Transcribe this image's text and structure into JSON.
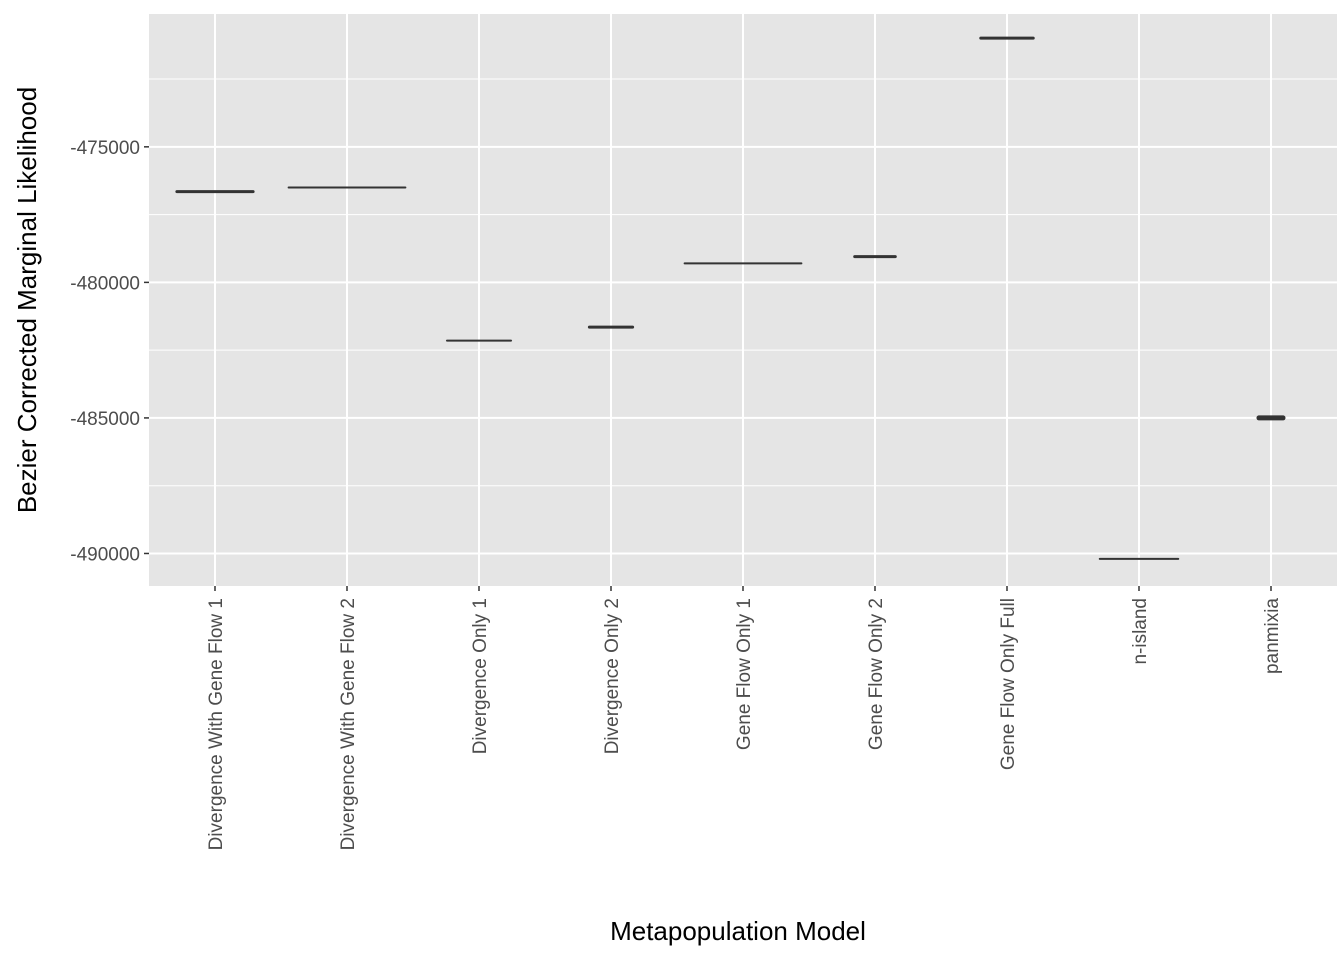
{
  "chart_data": {
    "type": "violin",
    "title": "",
    "xlabel": "Metapopulation Model",
    "ylabel": "Bezier Corrected Marginal Likelihood",
    "ylim": [
      -491200,
      -470100
    ],
    "yticks": [
      -475000,
      -480000,
      -485000,
      -490000
    ],
    "ytick_labels": [
      "-475000",
      "-480000",
      "-485000",
      "-490000"
    ],
    "grid": true,
    "background": "#e5e5e5",
    "grid_color": "#ffffff",
    "mark_color": "#333333",
    "categories": [
      "Divergence With Gene Flow 1",
      "Divergence With Gene Flow 2",
      "Divergence Only 1",
      "Divergence Only 2",
      "Gene Flow Only 1",
      "Gene Flow Only 2",
      "Gene Flow Only Full",
      "n-island",
      "panmixia"
    ],
    "values": [
      -476650,
      -476500,
      -482150,
      -481650,
      -479300,
      -479050,
      -470990,
      -490200,
      -485000
    ],
    "width_fraction": [
      0.6,
      0.9,
      0.5,
      0.35,
      0.9,
      0.33,
      0.42,
      0.61,
      0.22
    ],
    "thickness": [
      3,
      2,
      2,
      3,
      2,
      3,
      3,
      2,
      5
    ]
  }
}
